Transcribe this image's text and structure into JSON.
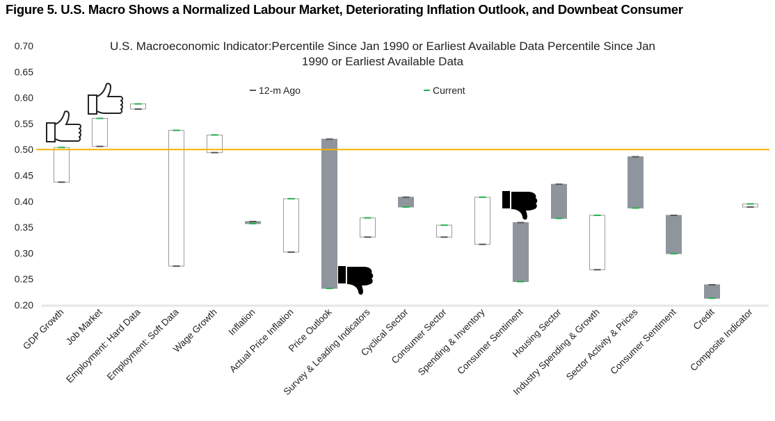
{
  "figure_title": "Figure 5. U.S. Macro Shows a Normalized Labour Market, Deteriorating Inflation Outlook, and Downbeat Consumer",
  "chart_data": {
    "type": "floating-bar",
    "title_line1": "U.S. Macroeconomic Indicator:Percentile Since Jan 1990 or Earliest Available Data Percentile Since Jan",
    "title_line2": "1990 or Earliest Available Data",
    "ylim": [
      0.2,
      0.7
    ],
    "yticks": [
      "0.20",
      "0.25",
      "0.30",
      "0.35",
      "0.40",
      "0.45",
      "0.50",
      "0.55",
      "0.60",
      "0.65",
      "0.70"
    ],
    "reference_line": 0.5,
    "grid": false,
    "legend_placement": "top",
    "legend": [
      {
        "name": "12-m Ago",
        "color": "#555555"
      },
      {
        "name": "Current",
        "color": "#22b14c"
      }
    ],
    "colors": {
      "increase_fill": "#ffffff",
      "decrease_fill": "#8e959c",
      "box_border": "#9a9a9a",
      "reference_line": "#f5b100",
      "ago_marker": "#555555",
      "current_marker": "#22b14c"
    },
    "icons": [
      "thumbs-up-outline",
      "thumbs-up-outline",
      "thumbs-down-filled",
      "thumbs-down-filled"
    ],
    "categories": [
      "GDP Growth",
      "Job Market",
      "Employment: Hard Data",
      "Employment: Soft Data",
      "Wage Growth",
      "Inflation",
      "Actual Price Inflation",
      "Price Outlook",
      "Survey & Leading Indicators",
      "Cyclical Sector",
      "Consumer Sector",
      "Spending & Inventory",
      "Consumer Sentiment",
      "Housing Sector",
      "Industry Spending & Growth",
      "Sector Activity & Prices",
      "Consumer Sentiment",
      "Credit",
      "Composite Indicator"
    ],
    "series": [
      {
        "name": "12-m Ago",
        "values": [
          0.437,
          0.506,
          0.578,
          0.275,
          0.494,
          0.361,
          0.302,
          0.52,
          0.331,
          0.408,
          0.331,
          0.317,
          0.359,
          0.433,
          0.268,
          0.486,
          0.373,
          0.239,
          0.389
        ]
      },
      {
        "name": "Current",
        "values": [
          0.504,
          0.56,
          0.588,
          0.537,
          0.528,
          0.357,
          0.405,
          0.232,
          0.368,
          0.389,
          0.354,
          0.408,
          0.245,
          0.367,
          0.373,
          0.387,
          0.299,
          0.213,
          0.395
        ]
      }
    ]
  }
}
